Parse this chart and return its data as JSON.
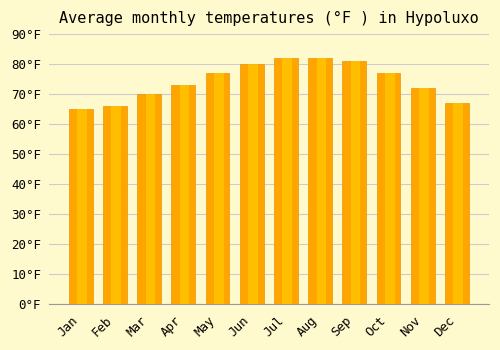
{
  "title": "Average monthly temperatures (°F ) in Hypoluxo",
  "months": [
    "Jan",
    "Feb",
    "Mar",
    "Apr",
    "May",
    "Jun",
    "Jul",
    "Aug",
    "Sep",
    "Oct",
    "Nov",
    "Dec"
  ],
  "values": [
    65,
    66,
    70,
    73,
    77,
    80,
    82,
    82,
    81,
    77,
    72,
    67
  ],
  "bar_color_main": "#FFA500",
  "bar_color_gradient_top": "#FFD700",
  "background_color": "#FFFACD",
  "grid_color": "#CCCCCC",
  "ylim": [
    0,
    90
  ],
  "yticks": [
    0,
    10,
    20,
    30,
    40,
    50,
    60,
    70,
    80,
    90
  ],
  "title_fontsize": 11,
  "tick_fontsize": 9,
  "bar_edge_color": "#E8950A"
}
